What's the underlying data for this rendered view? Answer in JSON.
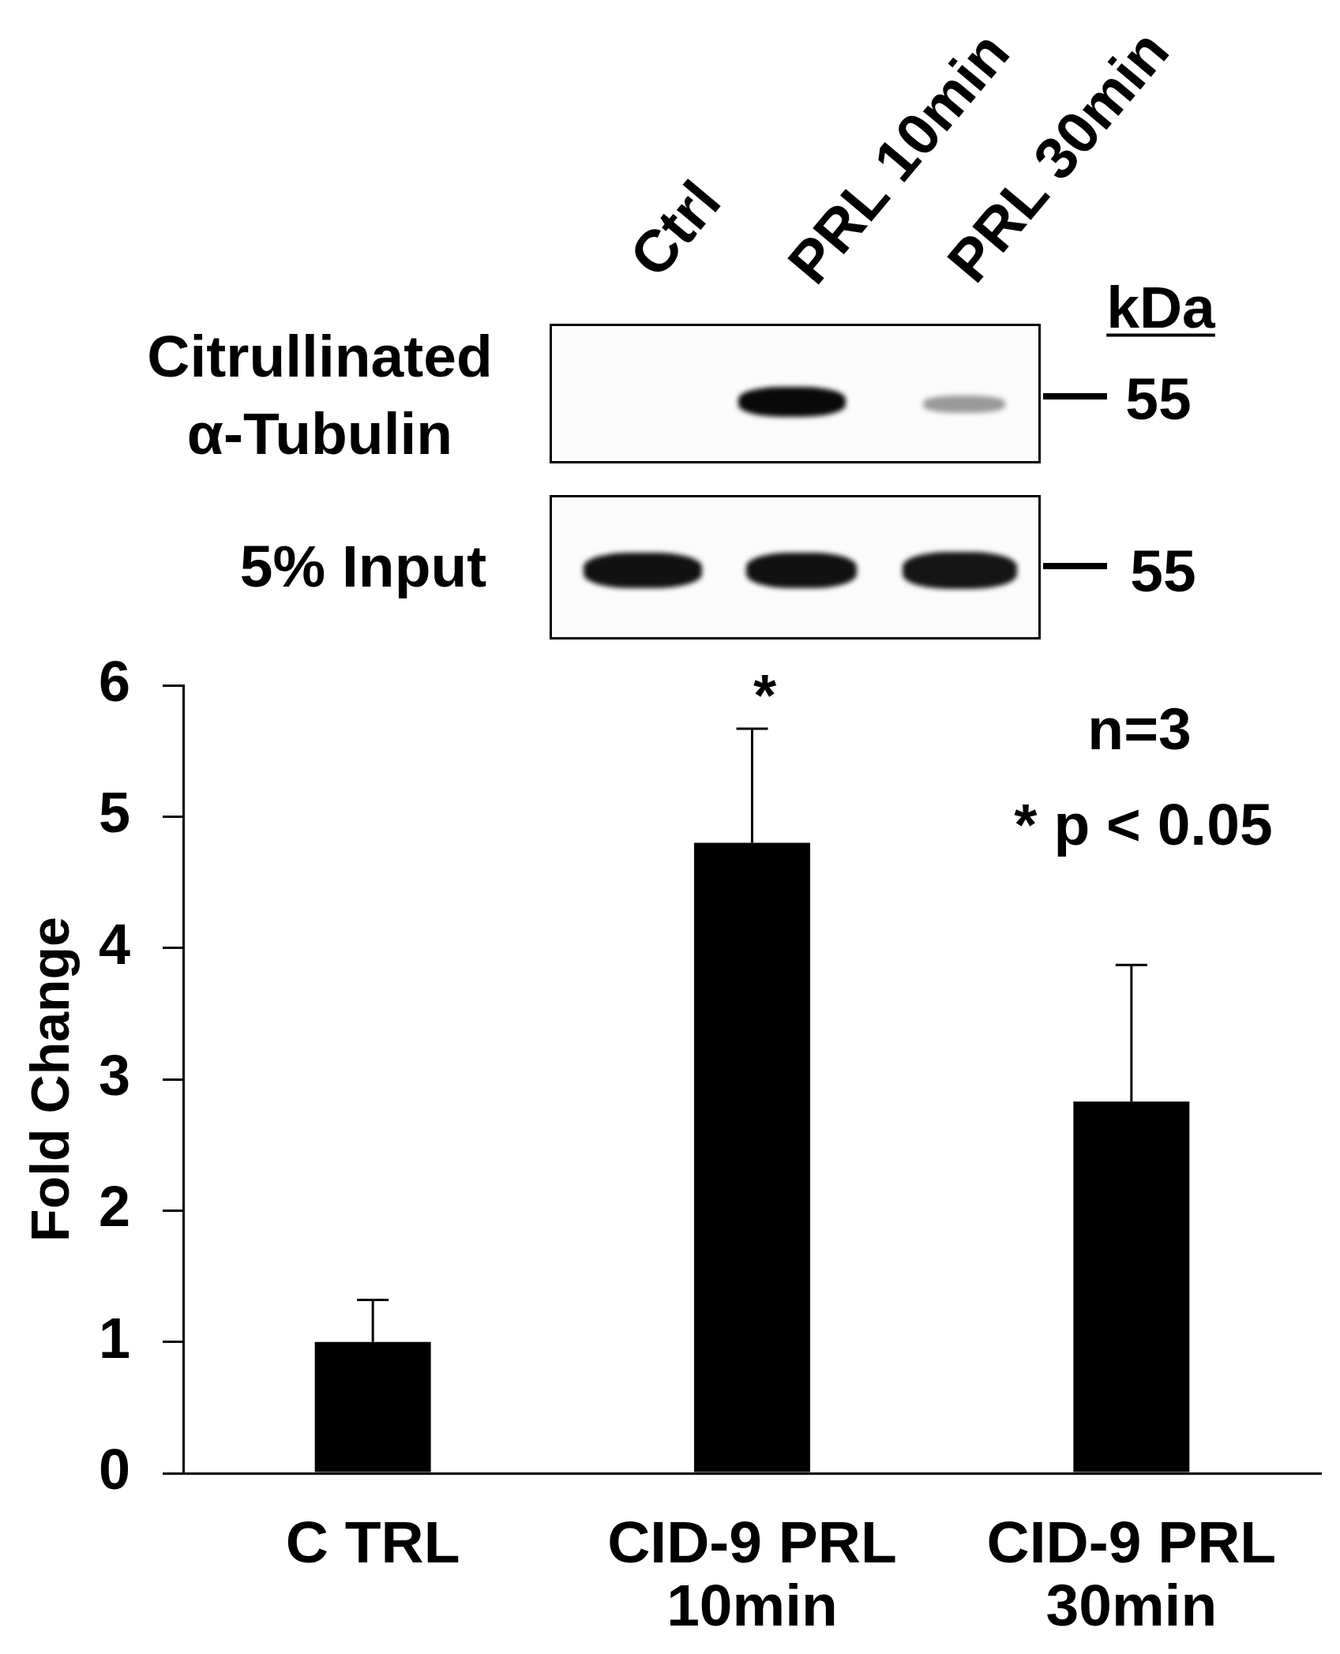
{
  "chart_data": {
    "type": "bar",
    "categories": [
      "C TRL",
      "CID-9 PRL\n10min",
      "CID-9 PRL\n30min"
    ],
    "values": [
      1.0,
      4.8,
      2.83
    ],
    "color": "#000000",
    "errors": [
      [
        1.0,
        1.32
      ],
      [
        4.8,
        5.67
      ],
      [
        2.83,
        3.87
      ]
    ],
    "ylabel": "Fold Change",
    "ylim": [
      0,
      6
    ],
    "yticks": [
      0,
      1,
      2,
      3,
      4,
      5,
      6
    ],
    "annotations": [
      "Ctrl",
      "PRL 10min",
      "PRL 30min",
      "kDa",
      "Citrullinated\nα-Tubulin",
      "5% Input",
      "55",
      "55",
      "n=3",
      "* p < 0.05",
      {
        "text": "*",
        "x": "CID-9 PRL\n10min",
        "y": 5.67
      }
    ]
  }
}
